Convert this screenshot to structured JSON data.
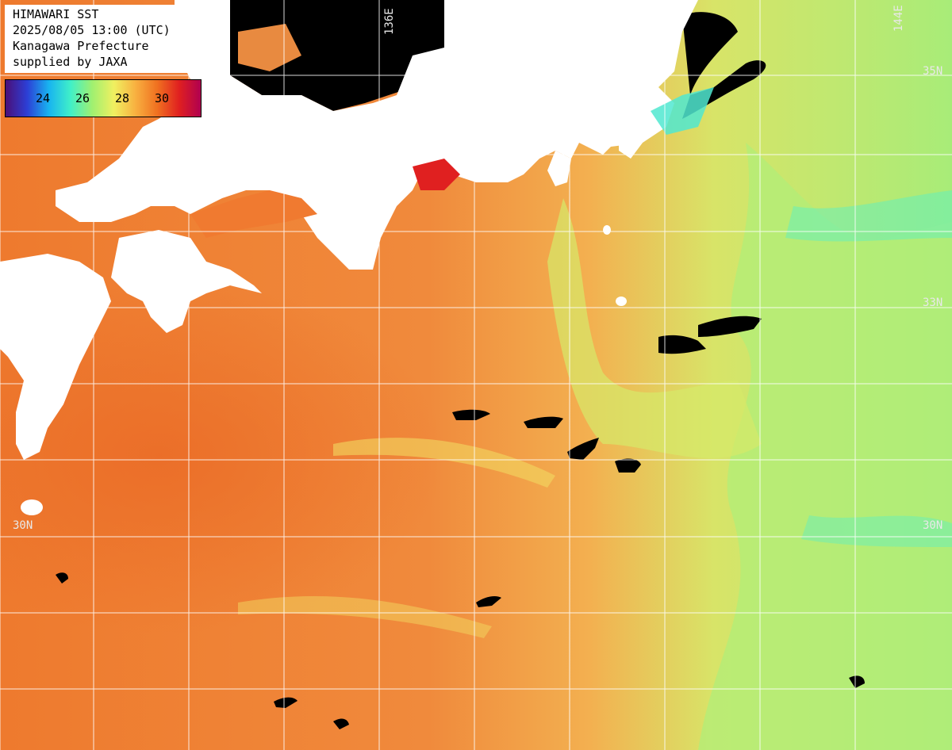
{
  "header": {
    "line1": "HIMAWARI SST",
    "line2": "2025/08/05 13:00 (UTC)",
    "line3": "Kanagawa Prefecture",
    "line4": "supplied by JAXA"
  },
  "colorbar": {
    "ticks": [
      "24",
      "26",
      "28",
      "30"
    ],
    "stops": [
      "#4b0f78",
      "#2c3fd6",
      "#18b4f0",
      "#40f0c8",
      "#a0f070",
      "#f0f060",
      "#f8b040",
      "#f07020",
      "#e02020",
      "#b00050"
    ]
  },
  "grid_labels": {
    "lon_136": "136E",
    "lon_144": "144E",
    "lat_35": "35N",
    "lat_33": "33N",
    "lat_30_right": "30N",
    "lat_30_left": "30N"
  },
  "colors": {
    "land": "#ffffff",
    "no_data": "#000000",
    "warm_sea": "#ef8a3a",
    "cool_sea": "#b8f078",
    "grid": "#ffffff"
  }
}
